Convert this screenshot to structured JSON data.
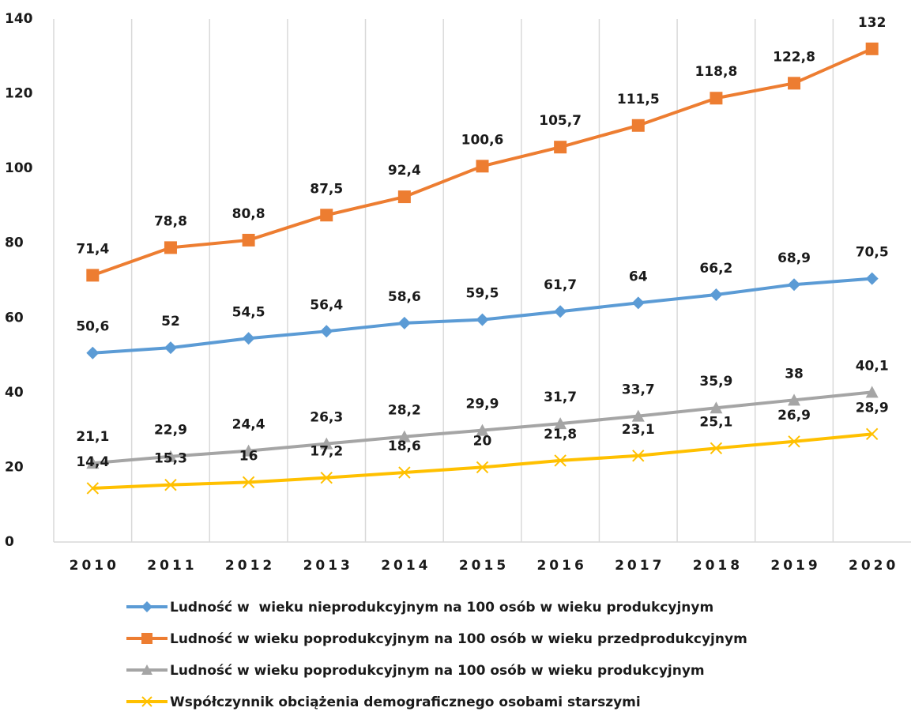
{
  "chart_data": {
    "type": "line",
    "categories": [
      "2010",
      "2011",
      "2012",
      "2013",
      "2014",
      "2015",
      "2016",
      "2017",
      "2018",
      "2019",
      "2020"
    ],
    "ylim": [
      0,
      140
    ],
    "yticks": [
      0,
      20,
      40,
      60,
      80,
      100,
      120,
      140
    ],
    "grid": false,
    "legend": "bottom",
    "series": [
      {
        "name": "Ludność w  wieku nieprodukcyjnym na 100 osób w wieku produkcyjnym",
        "color": "#5b9bd5",
        "marker": "diamond",
        "values": [
          50.6,
          52,
          54.5,
          56.4,
          58.6,
          59.5,
          61.7,
          64,
          66.2,
          68.9,
          70.5
        ],
        "value_labels": [
          "50,6",
          "52",
          "54,5",
          "56,4",
          "58,6",
          "59,5",
          "61,7",
          "64",
          "66,2",
          "68,9",
          "70,5"
        ]
      },
      {
        "name": "Ludność w wieku poprodukcyjnym na 100 osób w wieku przedprodukcyjnym",
        "color": "#ed7d31",
        "marker": "square",
        "values": [
          71.4,
          78.8,
          80.8,
          87.5,
          92.4,
          100.6,
          105.7,
          111.5,
          118.8,
          122.8,
          132
        ],
        "value_labels": [
          "71,4",
          "78,8",
          "80,8",
          "87,5",
          "92,4",
          "100,6",
          "105,7",
          "111,5",
          "118,8",
          "122,8",
          "132"
        ]
      },
      {
        "name": "Ludność w wieku poprodukcyjnym na 100 osób w wieku produkcyjnym",
        "color": "#a5a5a5",
        "marker": "triangle",
        "values": [
          21.1,
          22.9,
          24.4,
          26.3,
          28.2,
          29.9,
          31.7,
          33.7,
          35.9,
          38,
          40.1
        ],
        "value_labels": [
          "21,1",
          "22,9",
          "24,4",
          "26,3",
          "28,2",
          "29,9",
          "31,7",
          "33,7",
          "35,9",
          "38",
          "40,1"
        ]
      },
      {
        "name": "Współczynnik obciążenia demograficznego osobami starszymi",
        "color": "#ffc000",
        "marker": "x",
        "values": [
          14.4,
          15.3,
          16,
          17.2,
          18.6,
          20,
          21.8,
          23.1,
          25.1,
          26.9,
          28.9
        ],
        "value_labels": [
          "14,4",
          "15,3",
          "16",
          "17,2",
          "18,6",
          "20",
          "21,8",
          "23,1",
          "25,1",
          "26,9",
          "28,9"
        ]
      }
    ]
  }
}
